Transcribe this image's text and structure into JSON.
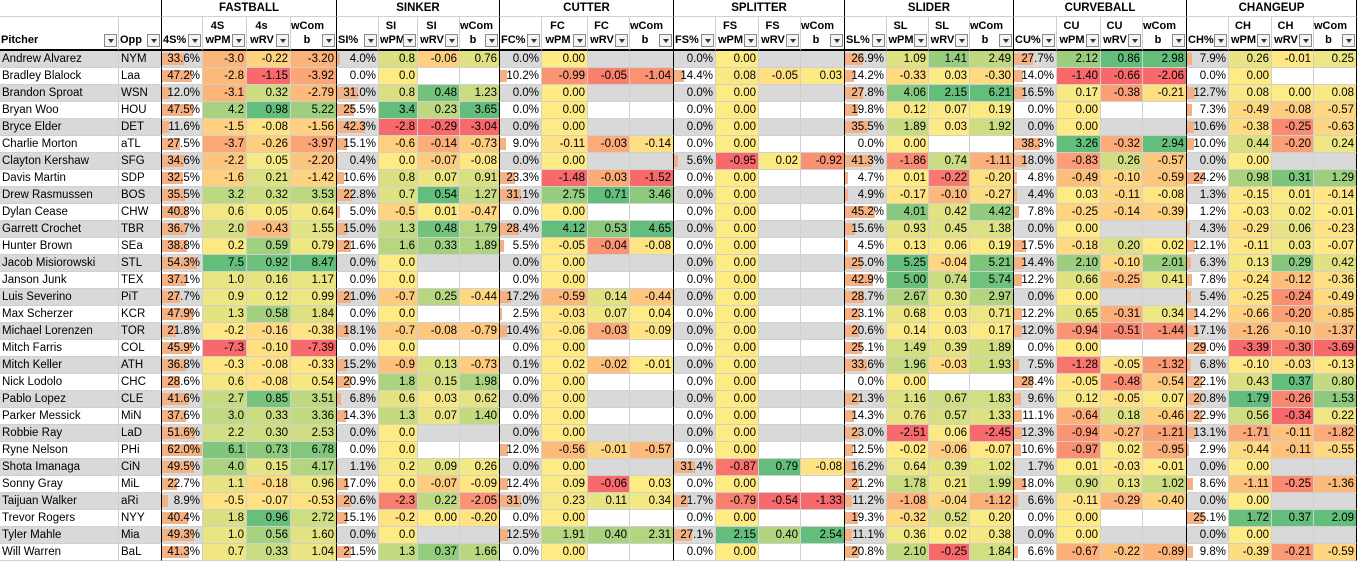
{
  "groups": [
    "FASTBALL",
    "SINKER",
    "CUTTER",
    "SPLITTER",
    "SLIDER",
    "CURVEBALL",
    "CHANGEUP"
  ],
  "header_base": [
    "Pitcher",
    "Opp"
  ],
  "group_headers": [
    [
      "4S%",
      "4S wPM",
      "4s wRV",
      "wCom b"
    ],
    [
      "SI%",
      "SI wPM",
      "SI wRV",
      "wCom b"
    ],
    [
      "FC%",
      "FC wPM",
      "FC wRV",
      "wCom b"
    ],
    [
      "FS%",
      "FS wPM",
      "FS wRV",
      "wCom b"
    ],
    [
      "SL%",
      "SL wPM",
      "SL wRV",
      "wCom b"
    ],
    [
      "CU%",
      "CU wPM",
      "CU wRV",
      "wCom b"
    ],
    [
      "CH%",
      "CH wPM",
      "CH wRV",
      "wCom b"
    ]
  ],
  "rows": [
    [
      "Andrew Alvarez",
      "NYM",
      "33.6%",
      "-3.0",
      "-0.22",
      "-3.20",
      "4.0%",
      "0.8",
      "-0.06",
      "0.76",
      "0.0%",
      "0.00",
      "",
      "",
      "0.0%",
      "0.00",
      "",
      "",
      "26.9%",
      "1.09",
      "1.41",
      "2.49",
      "27.7%",
      "2.12",
      "0.86",
      "2.98",
      "7.9%",
      "0.26",
      "-0.01",
      "0.25"
    ],
    [
      "Bradley Blalock",
      "Laa",
      "47.2%",
      "-2.8",
      "-1.15",
      "-3.92",
      "0.0%",
      "0.0",
      "",
      "",
      "10.2%",
      "-0.99",
      "-0.05",
      "-1.04",
      "14.4%",
      "0.08",
      "-0.05",
      "0.03",
      "14.2%",
      "-0.33",
      "0.03",
      "-0.30",
      "14.0%",
      "-1.40",
      "-0.66",
      "-2.06",
      "0.0%",
      "0.00",
      "",
      ""
    ],
    [
      "Brandon Sproat",
      "WSN",
      "12.0%",
      "-3.1",
      "0.32",
      "-2.79",
      "31.0%",
      "0.8",
      "0.48",
      "1.23",
      "0.0%",
      "0.00",
      "",
      "",
      "0.0%",
      "0.00",
      "",
      "",
      "27.8%",
      "4.06",
      "2.15",
      "6.21",
      "16.5%",
      "0.17",
      "-0.38",
      "-0.21",
      "12.7%",
      "0.08",
      "0.00",
      "0.08"
    ],
    [
      "Bryan Woo",
      "HOU",
      "47.5%",
      "4.2",
      "0.98",
      "5.22",
      "25.5%",
      "3.4",
      "0.23",
      "3.65",
      "0.0%",
      "0.00",
      "",
      "",
      "0.0%",
      "0.00",
      "",
      "",
      "19.8%",
      "0.12",
      "0.07",
      "0.19",
      "0.0%",
      "0.00",
      "",
      "",
      "7.3%",
      "-0.49",
      "-0.08",
      "-0.57"
    ],
    [
      "Bryce Elder",
      "DET",
      "11.6%",
      "-1.5",
      "-0.08",
      "-1.56",
      "42.3%",
      "-2.8",
      "-0.29",
      "-3.04",
      "0.0%",
      "0.00",
      "",
      "",
      "0.0%",
      "0.00",
      "",
      "",
      "35.5%",
      "1.89",
      "0.03",
      "1.92",
      "0.0%",
      "0.00",
      "",
      "",
      "10.6%",
      "-0.38",
      "-0.25",
      "-0.63"
    ],
    [
      "Charlie Morton",
      "aTL",
      "27.5%",
      "-3.7",
      "-0.26",
      "-3.97",
      "15.1%",
      "-0.6",
      "-0.14",
      "-0.73",
      "9.0%",
      "-0.11",
      "-0.03",
      "-0.14",
      "0.0%",
      "0.00",
      "",
      "",
      "0.0%",
      "0.00",
      "",
      "",
      "38.3%",
      "3.26",
      "-0.32",
      "2.94",
      "10.0%",
      "0.44",
      "-0.20",
      "0.24"
    ],
    [
      "Clayton Kershaw",
      "SFG",
      "34.6%",
      "-2.2",
      "0.05",
      "-2.20",
      "0.4%",
      "0.0",
      "-0.07",
      "-0.08",
      "0.0%",
      "0.00",
      "",
      "",
      "5.6%",
      "-0.95",
      "0.02",
      "-0.92",
      "41.3%",
      "-1.86",
      "0.74",
      "-1.11",
      "18.0%",
      "-0.83",
      "0.26",
      "-0.57",
      "0.0%",
      "0.00",
      "",
      ""
    ],
    [
      "Davis Martin",
      "SDP",
      "32.5%",
      "-1.6",
      "0.21",
      "-1.42",
      "10.6%",
      "0.8",
      "0.07",
      "0.91",
      "23.3%",
      "-1.48",
      "-0.03",
      "-1.52",
      "0.0%",
      "0.00",
      "",
      "",
      "4.7%",
      "0.01",
      "-0.22",
      "-0.20",
      "4.8%",
      "-0.49",
      "-0.10",
      "-0.59",
      "24.2%",
      "0.98",
      "0.31",
      "1.29"
    ],
    [
      "Drew Rasmussen",
      "BOS",
      "35.5%",
      "3.2",
      "0.32",
      "3.53",
      "22.8%",
      "0.7",
      "0.54",
      "1.27",
      "31.1%",
      "2.75",
      "0.71",
      "3.46",
      "0.0%",
      "0.00",
      "",
      "",
      "4.9%",
      "-0.17",
      "-0.10",
      "-0.27",
      "4.4%",
      "0.03",
      "-0.11",
      "-0.08",
      "1.3%",
      "-0.15",
      "0.01",
      "-0.14"
    ],
    [
      "Dylan Cease",
      "CHW",
      "40.8%",
      "0.6",
      "0.05",
      "0.64",
      "5.0%",
      "-0.5",
      "0.01",
      "-0.47",
      "0.0%",
      "0.00",
      "",
      "",
      "0.0%",
      "0.00",
      "",
      "",
      "45.2%",
      "4.01",
      "0.42",
      "4.42",
      "7.8%",
      "-0.25",
      "-0.14",
      "-0.39",
      "1.2%",
      "-0.03",
      "0.02",
      "-0.01"
    ],
    [
      "Garrett Crochet",
      "TBR",
      "36.7%",
      "2.0",
      "-0.43",
      "1.55",
      "15.0%",
      "1.3",
      "0.48",
      "1.79",
      "28.4%",
      "4.12",
      "0.53",
      "4.65",
      "0.0%",
      "0.00",
      "",
      "",
      "15.6%",
      "0.93",
      "0.45",
      "1.38",
      "0.0%",
      "0.00",
      "",
      "",
      "4.3%",
      "-0.29",
      "0.06",
      "-0.23"
    ],
    [
      "Hunter Brown",
      "SEa",
      "38.8%",
      "0.2",
      "0.59",
      "0.79",
      "21.6%",
      "1.6",
      "0.33",
      "1.89",
      "5.5%",
      "-0.05",
      "-0.04",
      "-0.08",
      "0.0%",
      "0.00",
      "",
      "",
      "4.5%",
      "0.13",
      "0.06",
      "0.19",
      "17.5%",
      "-0.18",
      "0.20",
      "0.02",
      "12.1%",
      "-0.11",
      "0.03",
      "-0.07"
    ],
    [
      "Jacob Misiorowski",
      "STL",
      "54.3%",
      "7.5",
      "0.92",
      "8.47",
      "0.0%",
      "0.0",
      "",
      "",
      "0.0%",
      "0.00",
      "",
      "",
      "0.0%",
      "0.00",
      "",
      "",
      "25.0%",
      "5.25",
      "-0.04",
      "5.21",
      "14.4%",
      "2.10",
      "-0.10",
      "2.01",
      "6.3%",
      "0.13",
      "0.29",
      "0.42"
    ],
    [
      "Janson Junk",
      "TEX",
      "37.1%",
      "1.0",
      "0.16",
      "1.17",
      "0.0%",
      "0.0",
      "",
      "",
      "0.0%",
      "0.00",
      "",
      "",
      "0.0%",
      "0.00",
      "",
      "",
      "42.9%",
      "5.00",
      "0.74",
      "5.74",
      "12.2%",
      "0.66",
      "-0.25",
      "0.41",
      "7.8%",
      "-0.24",
      "-0.12",
      "-0.36"
    ],
    [
      "Luis Severino",
      "PiT",
      "27.7%",
      "0.9",
      "0.12",
      "0.99",
      "21.0%",
      "-0.7",
      "0.25",
      "-0.44",
      "17.2%",
      "-0.59",
      "0.14",
      "-0.44",
      "0.0%",
      "0.00",
      "",
      "",
      "28.7%",
      "2.67",
      "0.30",
      "2.97",
      "0.0%",
      "0.00",
      "",
      "",
      "5.4%",
      "-0.25",
      "-0.24",
      "-0.49"
    ],
    [
      "Max Scherzer",
      "KCR",
      "47.9%",
      "1.3",
      "0.58",
      "1.84",
      "0.0%",
      "0.0",
      "",
      "",
      "2.5%",
      "-0.03",
      "0.07",
      "0.04",
      "0.0%",
      "0.00",
      "",
      "",
      "23.1%",
      "0.68",
      "0.03",
      "0.71",
      "12.2%",
      "0.65",
      "-0.31",
      "0.34",
      "14.2%",
      "-0.66",
      "-0.20",
      "-0.85"
    ],
    [
      "Michael Lorenzen",
      "TOR",
      "21.8%",
      "-0.2",
      "-0.16",
      "-0.38",
      "18.1%",
      "-0.7",
      "-0.08",
      "-0.79",
      "10.4%",
      "-0.06",
      "-0.03",
      "-0.09",
      "0.0%",
      "0.00",
      "",
      "",
      "20.6%",
      "0.14",
      "0.03",
      "0.17",
      "12.0%",
      "-0.94",
      "-0.51",
      "-1.44",
      "17.1%",
      "-1.26",
      "-0.10",
      "-1.37"
    ],
    [
      "Mitch Farris",
      "COL",
      "45.9%",
      "-7.3",
      "-0.10",
      "-7.39",
      "0.0%",
      "0.0",
      "",
      "",
      "0.0%",
      "0.00",
      "",
      "",
      "0.0%",
      "0.00",
      "",
      "",
      "25.1%",
      "1.49",
      "0.39",
      "1.89",
      "0.0%",
      "0.00",
      "",
      "",
      "29.0%",
      "-3.39",
      "-0.30",
      "-3.69"
    ],
    [
      "Mitch Keller",
      "ATH",
      "36.8%",
      "-0.3",
      "-0.08",
      "-0.33",
      "15.2%",
      "-0.9",
      "0.13",
      "-0.73",
      "0.1%",
      "0.02",
      "-0.02",
      "-0.01",
      "0.0%",
      "0.00",
      "",
      "",
      "33.6%",
      "1.96",
      "-0.03",
      "1.93",
      "7.5%",
      "-1.28",
      "-0.05",
      "-1.32",
      "6.8%",
      "-0.10",
      "-0.03",
      "-0.13"
    ],
    [
      "Nick Lodolo",
      "CHC",
      "28.6%",
      "0.6",
      "-0.08",
      "0.54",
      "20.9%",
      "1.8",
      "0.15",
      "1.98",
      "0.0%",
      "0.00",
      "",
      "",
      "0.0%",
      "0.00",
      "",
      "",
      "0.0%",
      "0.00",
      "",
      "",
      "28.4%",
      "-0.05",
      "-0.48",
      "-0.54",
      "22.1%",
      "0.43",
      "0.37",
      "0.80"
    ],
    [
      "Pablo Lopez",
      "CLE",
      "41.6%",
      "2.7",
      "0.85",
      "3.51",
      "6.8%",
      "0.6",
      "0.03",
      "0.62",
      "0.0%",
      "0.00",
      "",
      "",
      "0.0%",
      "0.00",
      "",
      "",
      "21.3%",
      "1.16",
      "0.67",
      "1.83",
      "9.6%",
      "0.12",
      "-0.05",
      "0.07",
      "20.8%",
      "1.79",
      "-0.26",
      "1.53"
    ],
    [
      "Parker Messick",
      "MiN",
      "37.6%",
      "3.0",
      "0.33",
      "3.36",
      "14.3%",
      "1.3",
      "0.07",
      "1.40",
      "0.0%",
      "0.00",
      "",
      "",
      "0.0%",
      "0.00",
      "",
      "",
      "14.3%",
      "0.76",
      "0.57",
      "1.33",
      "11.1%",
      "-0.64",
      "0.18",
      "-0.46",
      "22.9%",
      "0.56",
      "-0.34",
      "0.22"
    ],
    [
      "Robbie Ray",
      "LaD",
      "51.6%",
      "2.2",
      "0.30",
      "2.53",
      "0.0%",
      "0.0",
      "",
      "",
      "0.0%",
      "0.00",
      "",
      "",
      "0.0%",
      "0.00",
      "",
      "",
      "23.0%",
      "-2.51",
      "0.06",
      "-2.45",
      "12.3%",
      "-0.94",
      "-0.27",
      "-1.21",
      "13.1%",
      "-1.71",
      "-0.11",
      "-1.82"
    ],
    [
      "Ryne Nelson",
      "PHi",
      "62.0%",
      "6.1",
      "0.73",
      "6.78",
      "0.0%",
      "0.0",
      "",
      "",
      "12.0%",
      "-0.56",
      "-0.01",
      "-0.57",
      "0.0%",
      "0.00",
      "",
      "",
      "12.5%",
      "-0.02",
      "-0.06",
      "-0.07",
      "10.6%",
      "-0.97",
      "0.02",
      "-0.95",
      "2.9%",
      "-0.44",
      "-0.11",
      "-0.55"
    ],
    [
      "Shota Imanaga",
      "CiN",
      "49.5%",
      "4.0",
      "0.15",
      "4.17",
      "1.1%",
      "0.2",
      "0.09",
      "0.26",
      "0.0%",
      "0.00",
      "",
      "",
      "31.4%",
      "-0.87",
      "0.79",
      "-0.08",
      "16.2%",
      "0.64",
      "0.39",
      "1.02",
      "1.7%",
      "0.01",
      "-0.03",
      "-0.01",
      "0.0%",
      "0.00",
      "",
      ""
    ],
    [
      "Sonny Gray",
      "MiL",
      "22.7%",
      "1.1",
      "-0.18",
      "0.96",
      "17.0%",
      "0.0",
      "-0.07",
      "-0.09",
      "12.4%",
      "0.09",
      "-0.06",
      "0.03",
      "0.0%",
      "0.00",
      "",
      "",
      "21.2%",
      "1.78",
      "0.21",
      "1.99",
      "18.0%",
      "0.90",
      "0.13",
      "1.02",
      "8.6%",
      "-1.11",
      "-0.25",
      "-1.36"
    ],
    [
      "Taijuan Walker",
      "aRi",
      "8.9%",
      "-0.5",
      "-0.07",
      "-0.53",
      "20.6%",
      "-2.3",
      "0.22",
      "-2.05",
      "31.0%",
      "0.23",
      "0.11",
      "0.34",
      "21.7%",
      "-0.79",
      "-0.54",
      "-1.33",
      "11.2%",
      "-1.08",
      "-0.04",
      "-1.12",
      "6.6%",
      "-0.11",
      "-0.29",
      "-0.40",
      "0.0%",
      "0.00",
      "",
      ""
    ],
    [
      "Trevor Rogers",
      "NYY",
      "40.4%",
      "1.8",
      "0.96",
      "2.72",
      "15.1%",
      "-0.2",
      "0.00",
      "-0.20",
      "0.0%",
      "0.00",
      "",
      "",
      "0.0%",
      "0.00",
      "",
      "",
      "19.3%",
      "-0.32",
      "0.52",
      "0.20",
      "0.0%",
      "0.00",
      "",
      "",
      "25.1%",
      "1.72",
      "0.37",
      "2.09"
    ],
    [
      "Tyler Mahle",
      "Mia",
      "49.3%",
      "1.0",
      "0.56",
      "1.60",
      "0.0%",
      "0.0",
      "",
      "",
      "12.5%",
      "1.91",
      "0.40",
      "2.31",
      "27.1%",
      "2.15",
      "0.40",
      "2.54",
      "11.1%",
      "0.36",
      "0.02",
      "0.38",
      "0.0%",
      "0.00",
      "",
      "",
      "0.0%",
      "0.00",
      "",
      ""
    ],
    [
      "Will Warren",
      "BaL",
      "41.3%",
      "0.7",
      "0.33",
      "1.04",
      "21.5%",
      "1.3",
      "0.37",
      "1.66",
      "0.0%",
      "0.00",
      "",
      "",
      "0.0%",
      "0.00",
      "",
      "",
      "20.8%",
      "2.10",
      "-0.25",
      "1.84",
      "6.6%",
      "-0.67",
      "-0.22",
      "-0.89",
      "9.8%",
      "-0.39",
      "-0.21",
      "-0.59"
    ]
  ],
  "colors": {
    "red": "#f8696b",
    "yellow": "#ffeb84",
    "green": "#63be7b",
    "bar": "#f4b183",
    "rowgrey": "#d9d9d9",
    "rowwhite": "#ffffff"
  }
}
